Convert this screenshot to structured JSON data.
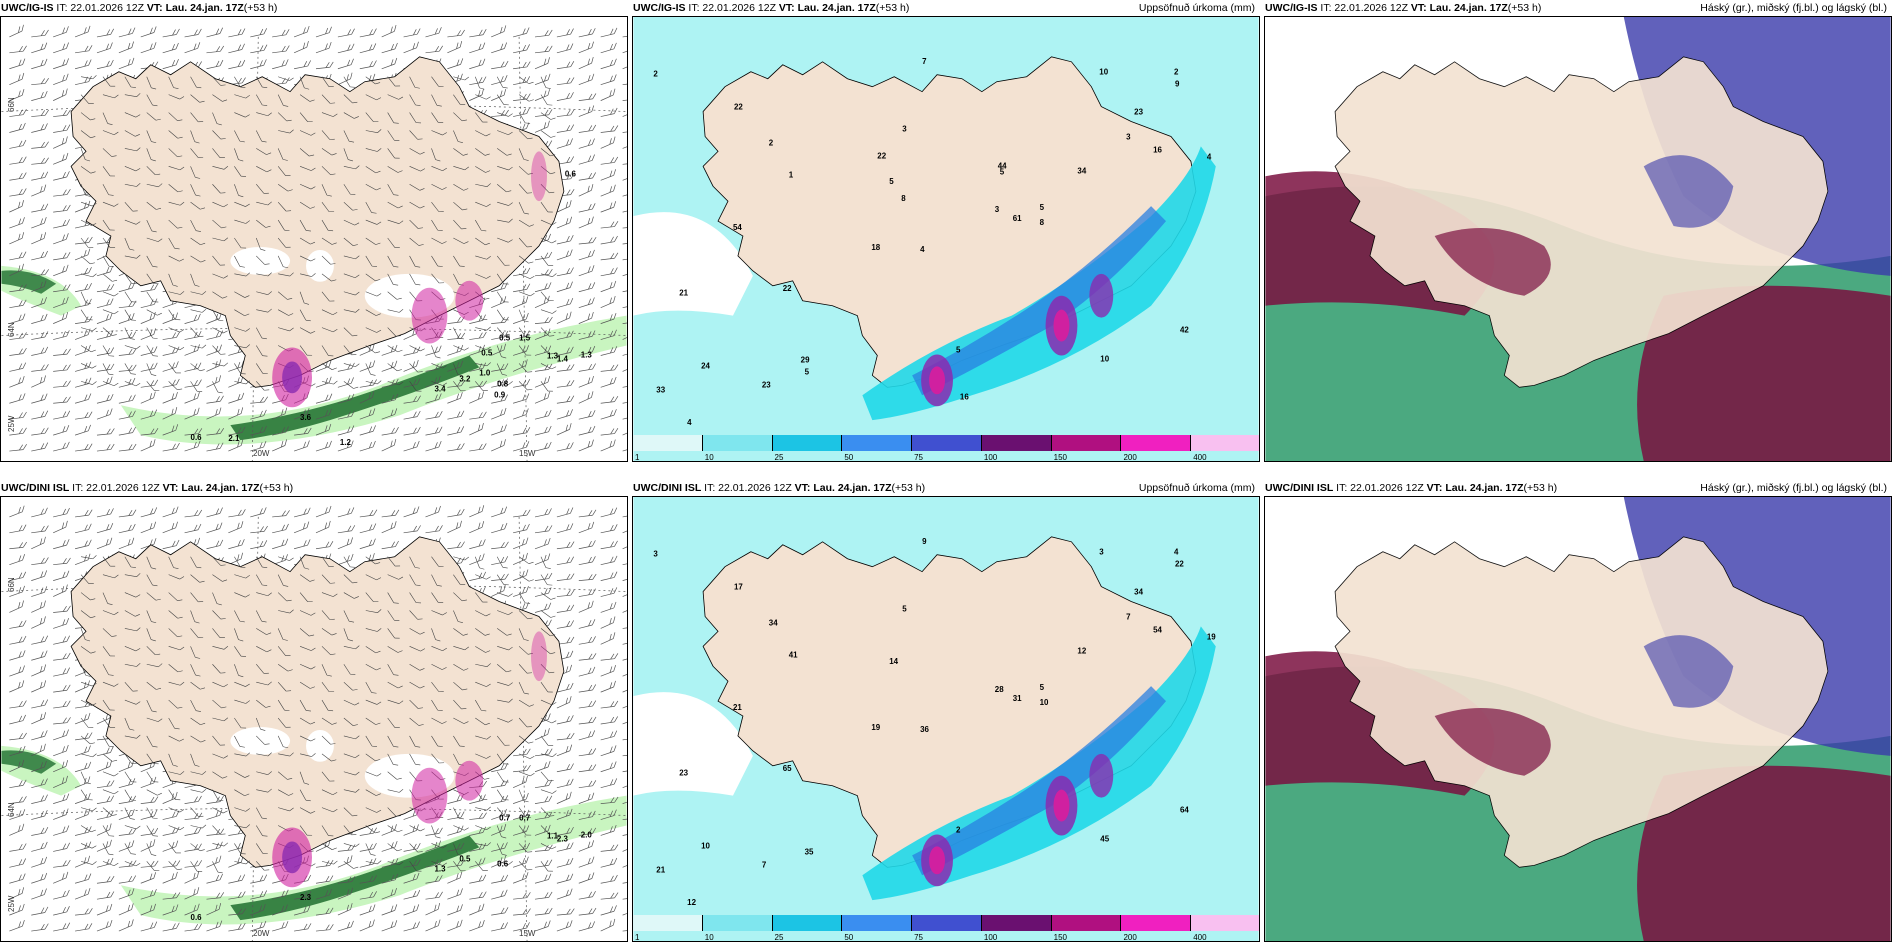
{
  "colors": {
    "land": "#f3e2d2",
    "sea_precip_light": "#aef3f3",
    "sea_precip_mid": "#20d8e8",
    "blue": "#2a7fe0",
    "purple": "#8a2ab0",
    "magenta": "#d020a0",
    "green_light": "#c9f5c0",
    "green_dark": "#1e6e2e",
    "cloud_high": "#2c9a6a",
    "cloud_mid": "#7a1040",
    "cloud_low": "#3a3aaa"
  },
  "panels": [
    {
      "model": "UWC/IG-IS",
      "it_label": "IT:",
      "it": "22.01.2026 12Z",
      "vt_label": "VT:",
      "vt": "Lau. 24.jan. 17Z",
      "lead": "(+53 h)",
      "right_title": "",
      "kind": "wind",
      "lat_labels": [
        "66N",
        "64N",
        "25W"
      ],
      "lon_labels": [
        "20W",
        "15W"
      ],
      "values": [
        "0.6",
        "0.5",
        "1.3",
        "1.3",
        "1.4",
        "1.5",
        "3.6",
        "3.4",
        "3.2",
        "0.8",
        "0.9",
        "1.0",
        "2.1",
        "1.2",
        "0.6",
        "0.5"
      ]
    },
    {
      "model": "UWC/IG-IS",
      "it_label": "IT:",
      "it": "22.01.2026 12Z",
      "vt_label": "VT:",
      "vt": "Lau. 24.jan. 17Z",
      "lead": "(+53 h)",
      "right_title": "Uppsöfnuð úrkoma (mm)",
      "kind": "precip",
      "colorbar": [
        "1",
        "10",
        "25",
        "50",
        "75",
        "100",
        "150",
        "200",
        "400"
      ],
      "values": [
        "2",
        "3",
        "5",
        "7",
        "4",
        "9",
        "10",
        "5",
        "3",
        "2",
        "4",
        "5",
        "1",
        "16",
        "42",
        "22",
        "54",
        "23",
        "61",
        "34",
        "8",
        "5",
        "2",
        "3",
        "4",
        "10",
        "18",
        "22",
        "24",
        "23",
        "21",
        "33",
        "44",
        "29",
        "22",
        "16",
        "5",
        "8"
      ]
    },
    {
      "model": "UWC/IG-IS",
      "it_label": "IT:",
      "it": "22.01.2026 12Z",
      "vt_label": "VT:",
      "vt": "Lau. 24.jan. 17Z",
      "lead": "(+53 h)",
      "right_title": "Háský (gr.), miðský (fj.bl.) og lágský (bl.)",
      "kind": "cloud"
    },
    {
      "model": "UWC/DINI ISL",
      "it_label": "IT:",
      "it": "22.01.2026 12Z",
      "vt_label": "VT:",
      "vt": "Lau. 24.jan. 17Z",
      "lead": "(+53 h)",
      "right_title": "",
      "kind": "wind",
      "lat_labels": [
        "66N",
        "64N",
        "25W"
      ],
      "lon_labels": [
        "20W",
        "15W"
      ],
      "values": [
        "0.6",
        "0.7",
        "1.1",
        "2.0",
        "2.3",
        "0.7",
        "2.3",
        "1.3",
        "0.5",
        "0.6"
      ]
    },
    {
      "model": "UWC/DINI ISL",
      "it_label": "IT:",
      "it": "22.01.2026 12Z",
      "vt_label": "VT:",
      "vt": "Lau. 24.jan. 17Z",
      "lead": "(+53 h)",
      "right_title": "Uppsöfnuð úrkoma (mm)",
      "kind": "precip",
      "colorbar": [
        "1",
        "10",
        "25",
        "50",
        "75",
        "100",
        "150",
        "200",
        "400"
      ],
      "values": [
        "3",
        "5",
        "2",
        "9",
        "12",
        "22",
        "3",
        "5",
        "7",
        "4",
        "19",
        "35",
        "41",
        "54",
        "64",
        "65",
        "21",
        "34",
        "31",
        "12",
        "10",
        "14",
        "34",
        "28",
        "36",
        "45",
        "19",
        "17",
        "10",
        "7",
        "23",
        "21"
      ]
    },
    {
      "model": "UWC/DINI ISL",
      "it_label": "IT:",
      "it": "22.01.2026 12Z",
      "vt_label": "VT:",
      "vt": "Lau. 24.jan. 17Z",
      "lead": "(+53 h)",
      "right_title": "Háský (gr.), miðský (fj.bl.) og lágský (bl.)",
      "kind": "cloud"
    }
  ]
}
